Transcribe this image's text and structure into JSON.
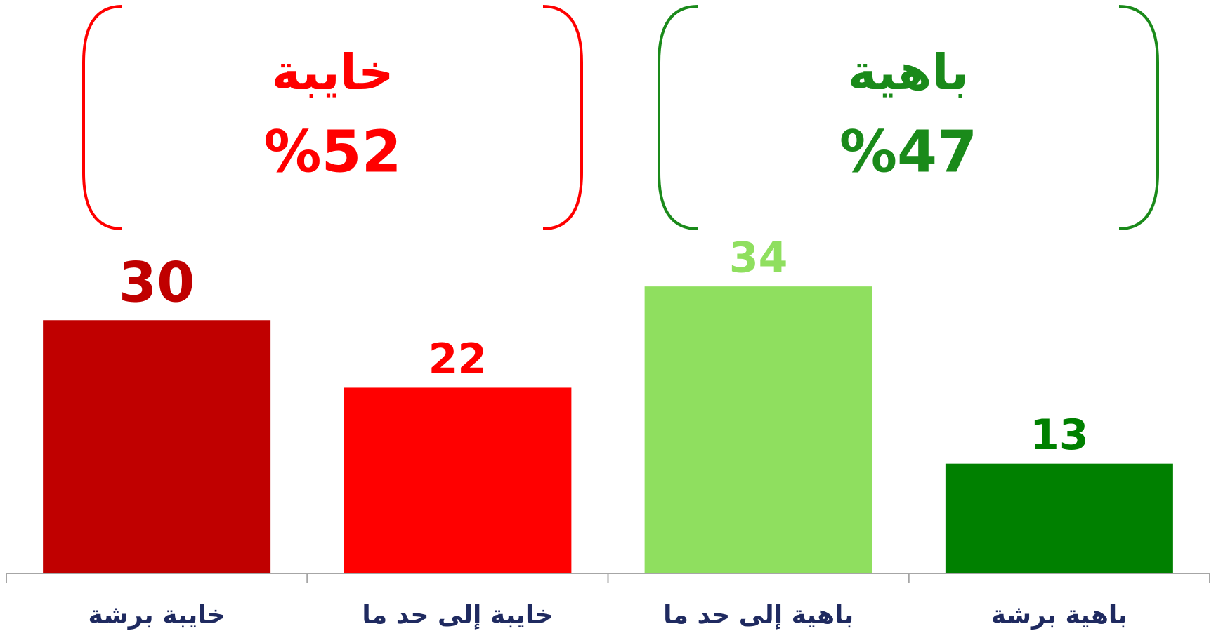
{
  "chart_data": {
    "type": "bar",
    "categories": [
      "خايبة برشة",
      "خايبة إلى حد ما",
      "باهية إلى حد ما",
      "باهية برشة"
    ],
    "values": [
      30,
      22,
      34,
      13
    ],
    "colors": [
      "#c00000",
      "#ff0000",
      "#8fdf5f",
      "#008000"
    ],
    "ylim": [
      0,
      40
    ],
    "annotations": [
      {
        "title": "خايبة",
        "text": "%52",
        "color": "#ff0000"
      },
      {
        "title": "باهية",
        "text": "%47",
        "color": "#1a8a1a"
      }
    ]
  }
}
